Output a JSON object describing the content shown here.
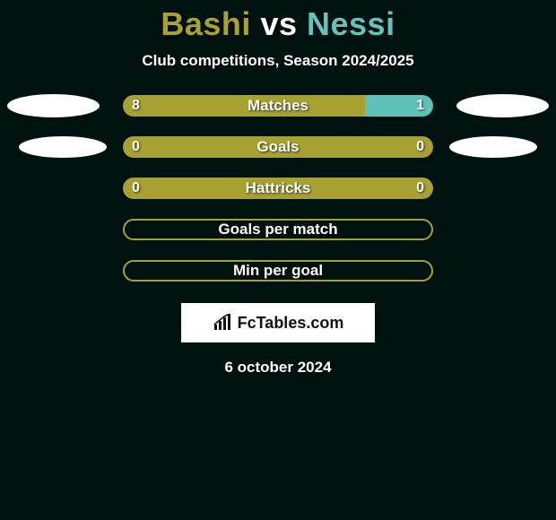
{
  "background_color": "#001210",
  "title": {
    "player1": "Bashi",
    "vs": "vs",
    "player2": "Nessi",
    "player1_color": "#a8a233",
    "player2_color": "#64c4bb",
    "fontsize": 36
  },
  "subtitle": {
    "text": "Club competitions, Season 2024/2025",
    "fontsize": 17
  },
  "ellipse": {
    "left_color": "#ffffff",
    "right_color": "#ffffff"
  },
  "bar_colors": {
    "left": "#a7a033",
    "right": "#5fc2b8",
    "neutral": "#a7a033",
    "outline": "#a7a033"
  },
  "stats": [
    {
      "label": "Matches",
      "left_value": "8",
      "right_value": "1",
      "left_num": 8,
      "right_num": 1,
      "left_pct": 78,
      "right_pct": 22,
      "show_ellipses": "big",
      "layout": "split"
    },
    {
      "label": "Goals",
      "left_value": "0",
      "right_value": "0",
      "left_num": 0,
      "right_num": 0,
      "left_pct": 100,
      "right_pct": 0,
      "show_ellipses": "small",
      "layout": "solid"
    },
    {
      "label": "Hattricks",
      "left_value": "0",
      "right_value": "0",
      "left_num": 0,
      "right_num": 0,
      "left_pct": 100,
      "right_pct": 0,
      "show_ellipses": "none",
      "layout": "solid"
    },
    {
      "label": "Goals per match",
      "layout": "outline"
    },
    {
      "label": "Min per goal",
      "layout": "outline"
    }
  ],
  "logo": {
    "text": "FcTables.com",
    "icon_color": "#111111",
    "bg_color": "#ffffff"
  },
  "date": {
    "text": "6 october 2024"
  }
}
